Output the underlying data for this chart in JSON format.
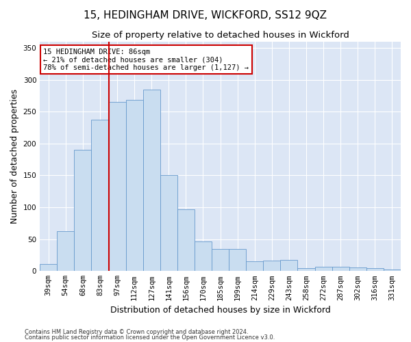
{
  "title": "15, HEDINGHAM DRIVE, WICKFORD, SS12 9QZ",
  "subtitle": "Size of property relative to detached houses in Wickford",
  "xlabel": "Distribution of detached houses by size in Wickford",
  "ylabel": "Number of detached properties",
  "footnote1": "Contains HM Land Registry data © Crown copyright and database right 2024.",
  "footnote2": "Contains public sector information licensed under the Open Government Licence v3.0.",
  "bar_labels": [
    "39sqm",
    "54sqm",
    "68sqm",
    "83sqm",
    "97sqm",
    "112sqm",
    "127sqm",
    "141sqm",
    "156sqm",
    "170sqm",
    "185sqm",
    "199sqm",
    "214sqm",
    "229sqm",
    "243sqm",
    "258sqm",
    "272sqm",
    "287sqm",
    "302sqm",
    "316sqm",
    "331sqm"
  ],
  "bar_values": [
    11,
    62,
    190,
    237,
    265,
    268,
    285,
    150,
    97,
    46,
    35,
    35,
    15,
    16,
    17,
    5,
    7,
    7,
    6,
    5,
    2
  ],
  "bar_color": "#c9ddf0",
  "bar_edge_color": "#6699cc",
  "vline_x": 3.5,
  "vline_color": "#cc0000",
  "annotation_text": "15 HEDINGHAM DRIVE: 86sqm\n← 21% of detached houses are smaller (304)\n78% of semi-detached houses are larger (1,127) →",
  "annotation_box_color": "#ffffff",
  "annotation_box_edge": "#cc0000",
  "ylim": [
    0,
    360
  ],
  "yticks": [
    0,
    50,
    100,
    150,
    200,
    250,
    300,
    350
  ],
  "plot_bg_color": "#dce6f5",
  "fig_bg_color": "#ffffff",
  "title_fontsize": 11,
  "subtitle_fontsize": 9.5,
  "axis_label_fontsize": 9,
  "tick_fontsize": 7.5,
  "annot_fontsize": 7.5
}
